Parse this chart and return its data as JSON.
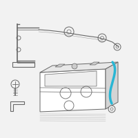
{
  "background_color": "#f2f2f2",
  "line_color": "#666666",
  "highlight_color": "#29b6d4",
  "fig_size": [
    2.0,
    2.0
  ],
  "dpi": 100
}
